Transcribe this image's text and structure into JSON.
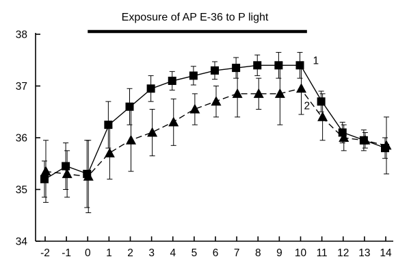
{
  "chart_data": {
    "type": "line",
    "title": "Exposure of AP E-36 to P light",
    "xlabel": "",
    "ylabel": "",
    "x": [
      -2,
      -1,
      0,
      1,
      2,
      3,
      4,
      5,
      6,
      7,
      8,
      9,
      10,
      11,
      12,
      13,
      14
    ],
    "xticks": [
      "-2",
      "-1",
      "0",
      "1",
      "2",
      "3",
      "4",
      "5",
      "6",
      "7",
      "8",
      "9",
      "10",
      "11",
      "12",
      "13",
      "14"
    ],
    "yticks": [
      "34",
      "35",
      "36",
      "37",
      "38"
    ],
    "ylim": [
      34,
      38
    ],
    "grid": false,
    "exposure_period": [
      0,
      10.3
    ],
    "series": [
      {
        "name": "1",
        "marker": "square",
        "line_style": "solid",
        "values": [
          35.2,
          35.45,
          35.3,
          36.25,
          36.6,
          36.95,
          37.1,
          37.2,
          37.3,
          37.35,
          37.4,
          37.4,
          37.4,
          36.7,
          36.1,
          35.95,
          35.8
        ],
        "error": [
          0.35,
          0.45,
          0.65,
          0.45,
          0.35,
          0.25,
          0.18,
          0.18,
          0.17,
          0.2,
          0.2,
          0.25,
          0.25,
          0.2,
          0.2,
          0.2,
          0.2
        ]
      },
      {
        "name": "2",
        "marker": "triangle",
        "line_style": "dashed",
        "values": [
          35.35,
          35.3,
          35.25,
          35.7,
          35.95,
          36.1,
          36.3,
          36.55,
          36.7,
          36.85,
          36.85,
          36.85,
          36.95,
          36.4,
          36.0,
          35.95,
          35.85
        ],
        "error": [
          0.6,
          0.45,
          0.7,
          0.5,
          0.6,
          0.45,
          0.45,
          0.3,
          0.3,
          0.45,
          0.3,
          0.6,
          0.5,
          0.45,
          0.25,
          0.15,
          0.55
        ]
      }
    ]
  }
}
